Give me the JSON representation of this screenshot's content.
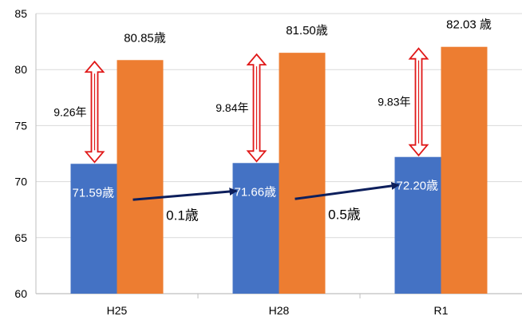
{
  "chart_data": {
    "type": "bar",
    "categories": [
      "H25",
      "H28",
      "R1"
    ],
    "series": [
      {
        "color": "#4472c4",
        "values": [
          71.59,
          71.66,
          72.2
        ],
        "labels": [
          "71.59歳",
          "71.66歳",
          "72.20歳"
        ]
      },
      {
        "color": "#ed7d31",
        "values": [
          80.85,
          81.5,
          82.03
        ],
        "labels": [
          "80.85歳",
          "81.50歳",
          "82.03 歳"
        ]
      }
    ],
    "ylim": [
      60,
      85
    ],
    "yticks": [
      "60",
      "65",
      "70",
      "75",
      "80",
      "85"
    ],
    "gap_annotations": [
      {
        "category": "H25",
        "label": "9.26年"
      },
      {
        "category": "H28",
        "label": "9.84年"
      },
      {
        "category": "R1",
        "label": "9.83年"
      }
    ],
    "change_annotations": [
      {
        "from": "H25",
        "to": "H28",
        "label": "0.1歳"
      },
      {
        "from": "H28",
        "to": "R1",
        "label": "0.5歳"
      }
    ],
    "gridlines": true,
    "legend": "none"
  },
  "colors": {
    "gap_arrow": "#e01818",
    "change_arrow": "#0d1f5c",
    "grid": "#d9d9d9",
    "axis": "#bfbfbf"
  }
}
